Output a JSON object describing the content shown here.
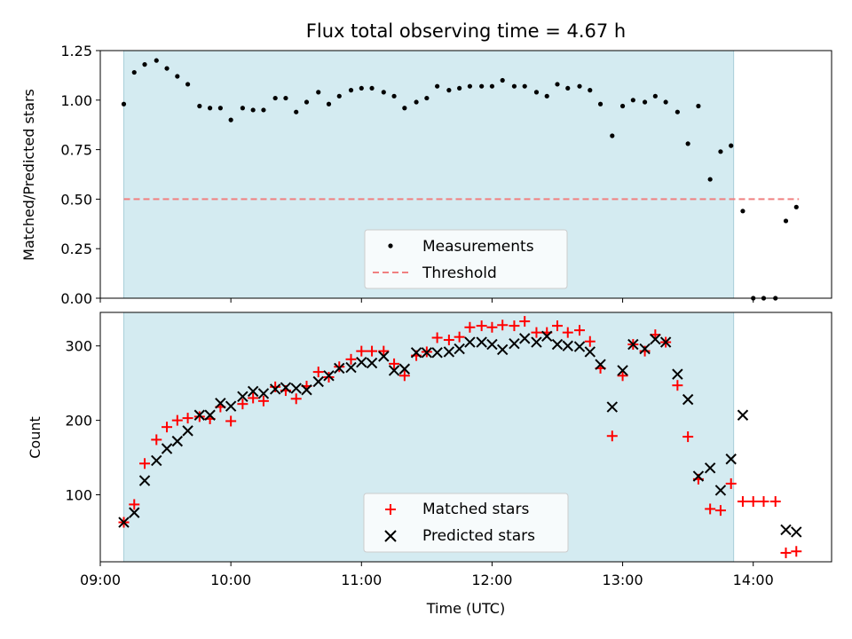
{
  "chart_data": [
    {
      "type": "scatter",
      "title": "Flux total observing time = 4.67 h",
      "xlabel": "",
      "ylabel": "Matched/Predicted stars",
      "xlim": [
        9.0,
        14.6
      ],
      "ylim": [
        0.0,
        1.25
      ],
      "yticks": [
        0.0,
        0.25,
        0.5,
        0.75,
        1.0,
        1.25
      ],
      "ytick_labels": [
        "0.00",
        "0.25",
        "0.50",
        "0.75",
        "1.00",
        "1.25"
      ],
      "shaded_region": [
        9.18,
        13.85
      ],
      "legend_position": "lower center",
      "series": [
        {
          "name": "Measurements",
          "marker": "dot",
          "color": "#000000",
          "x": [
            9.18,
            9.26,
            9.34,
            9.43,
            9.51,
            9.59,
            9.67,
            9.76,
            9.84,
            9.92,
            10.0,
            10.09,
            10.17,
            10.25,
            10.34,
            10.42,
            10.5,
            10.58,
            10.67,
            10.75,
            10.83,
            10.92,
            11.0,
            11.08,
            11.17,
            11.25,
            11.33,
            11.42,
            11.5,
            11.58,
            11.67,
            11.75,
            11.83,
            11.92,
            12.0,
            12.08,
            12.17,
            12.25,
            12.34,
            12.42,
            12.5,
            12.58,
            12.67,
            12.75,
            12.83,
            12.92,
            13.0,
            13.08,
            13.17,
            13.25,
            13.33,
            13.42,
            13.5,
            13.58,
            13.67,
            13.75,
            13.83,
            13.92,
            14.0,
            14.08,
            14.17,
            14.25,
            14.33
          ],
          "y": [
            0.98,
            1.14,
            1.18,
            1.2,
            1.16,
            1.12,
            1.08,
            0.97,
            0.96,
            0.96,
            0.9,
            0.96,
            0.95,
            0.95,
            1.01,
            1.01,
            0.94,
            0.99,
            1.04,
            0.98,
            1.02,
            1.05,
            1.06,
            1.06,
            1.04,
            1.02,
            0.96,
            0.99,
            1.01,
            1.07,
            1.05,
            1.06,
            1.07,
            1.07,
            1.07,
            1.1,
            1.07,
            1.07,
            1.04,
            1.02,
            1.08,
            1.06,
            1.07,
            1.05,
            0.98,
            0.82,
            0.97,
            1.0,
            0.99,
            1.02,
            0.99,
            0.94,
            0.78,
            0.97,
            0.6,
            0.74,
            0.77,
            0.44,
            0.0,
            0.0,
            0.0,
            0.39,
            0.46
          ]
        },
        {
          "name": "Threshold",
          "marker": "dashed-line",
          "color": "#f08080",
          "x": [
            9.18,
            14.35
          ],
          "y": [
            0.5,
            0.5
          ]
        }
      ]
    },
    {
      "type": "scatter",
      "title": "",
      "xlabel": "Time (UTC)",
      "ylabel": "Count",
      "xlim": [
        9.0,
        14.6
      ],
      "ylim": [
        10,
        345
      ],
      "xticks": [
        9,
        10,
        11,
        12,
        13,
        14
      ],
      "xtick_labels": [
        "09:00",
        "10:00",
        "11:00",
        "12:00",
        "13:00",
        "14:00"
      ],
      "yticks": [
        100,
        200,
        300
      ],
      "ytick_labels": [
        "100",
        "200",
        "300"
      ],
      "shaded_region": [
        9.18,
        13.85
      ],
      "legend_position": "lower center",
      "series": [
        {
          "name": "Matched stars",
          "marker": "plus",
          "color": "#ff0000",
          "x": [
            9.18,
            9.26,
            9.34,
            9.43,
            9.51,
            9.59,
            9.67,
            9.76,
            9.84,
            9.92,
            10.0,
            10.09,
            10.17,
            10.25,
            10.34,
            10.42,
            10.5,
            10.58,
            10.67,
            10.75,
            10.83,
            10.92,
            11.0,
            11.08,
            11.17,
            11.25,
            11.33,
            11.42,
            11.5,
            11.58,
            11.67,
            11.75,
            11.83,
            11.92,
            12.0,
            12.08,
            12.17,
            12.25,
            12.34,
            12.42,
            12.5,
            12.58,
            12.67,
            12.75,
            12.83,
            12.92,
            13.0,
            13.08,
            13.17,
            13.25,
            13.33,
            13.42,
            13.5,
            13.58,
            13.67,
            13.75,
            13.83,
            13.92,
            14.0,
            14.08,
            14.17,
            14.25,
            14.33
          ],
          "y": [
            63,
            87,
            142,
            174,
            191,
            200,
            203,
            205,
            202,
            218,
            199,
            222,
            230,
            226,
            245,
            240,
            229,
            246,
            265,
            258,
            272,
            282,
            293,
            293,
            293,
            276,
            260,
            287,
            292,
            311,
            308,
            312,
            325,
            327,
            325,
            328,
            327,
            333,
            318,
            318,
            327,
            318,
            321,
            306,
            270,
            179,
            260,
            302,
            293,
            315,
            305,
            247,
            178,
            121,
            81,
            79,
            115,
            91,
            91,
            91,
            91,
            22,
            24
          ]
        },
        {
          "name": "Predicted stars",
          "marker": "x",
          "color": "#000000",
          "x": [
            9.18,
            9.26,
            9.34,
            9.43,
            9.51,
            9.59,
            9.67,
            9.76,
            9.84,
            9.92,
            10.0,
            10.09,
            10.17,
            10.25,
            10.34,
            10.42,
            10.5,
            10.58,
            10.67,
            10.75,
            10.83,
            10.92,
            11.0,
            11.08,
            11.17,
            11.25,
            11.33,
            11.42,
            11.5,
            11.58,
            11.67,
            11.75,
            11.83,
            11.92,
            12.0,
            12.08,
            12.17,
            12.25,
            12.34,
            12.42,
            12.5,
            12.58,
            12.67,
            12.75,
            12.83,
            12.92,
            13.0,
            13.08,
            13.17,
            13.25,
            13.33,
            13.42,
            13.5,
            13.58,
            13.67,
            13.75,
            13.83,
            13.92,
            14.25,
            14.33
          ],
          "y": [
            63,
            76,
            119,
            146,
            162,
            172,
            186,
            207,
            207,
            223,
            219,
            232,
            239,
            236,
            242,
            244,
            243,
            241,
            252,
            260,
            270,
            271,
            278,
            277,
            286,
            267,
            269,
            291,
            291,
            291,
            292,
            296,
            305,
            305,
            302,
            295,
            303,
            310,
            305,
            313,
            302,
            300,
            299,
            292,
            275,
            218,
            267,
            302,
            296,
            309,
            305,
            262,
            228,
            125,
            136,
            106,
            148,
            207,
            53,
            50
          ]
        }
      ]
    }
  ]
}
